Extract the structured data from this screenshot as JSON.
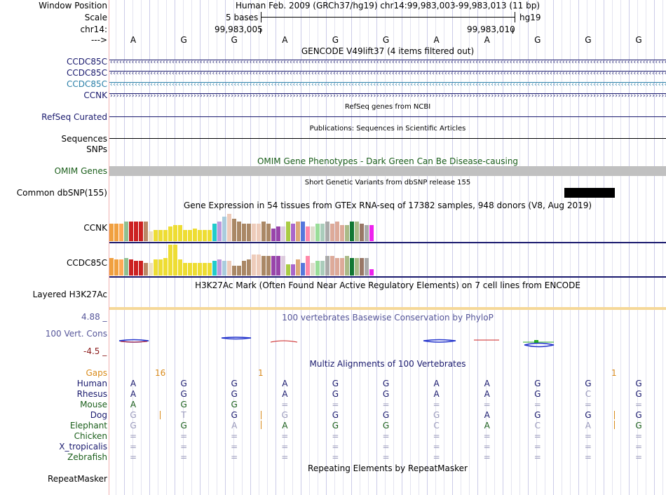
{
  "colors": {
    "navy": "#1a1a6e",
    "teal": "#2a7fa8",
    "green": "#1a5e1a",
    "orange": "#d98a1a",
    "omim_bar": "#c0c0c0",
    "h3k27ac": "#f5d898",
    "gtex_line": "#1a1a6e",
    "phylop_pos": "#555599",
    "phylop_neg": "#8b1a1a"
  },
  "header": {
    "window_label": "Window Position",
    "window_text": "Human Feb. 2009 (GRCh37/hg19)   chr14:99,983,003-99,983,013 (11 bp)",
    "scale_label": "Scale",
    "scale_text": "5 bases",
    "scale_assembly": "hg19",
    "chr_label": "chr14:",
    "pos_left": "99,983,005",
    "pos_right": "99,983,010",
    "strand_label": "--->",
    "bases": [
      "A",
      "G",
      "G",
      "A",
      "G",
      "G",
      "A",
      "A",
      "G",
      "G",
      "G"
    ]
  },
  "gencode": {
    "title": "GENCODE V49lift37 (4 items filtered out)",
    "tracks": [
      {
        "label": "CCDC85C",
        "color": "#1a1a6e",
        "dir": "‹"
      },
      {
        "label": "CCDC85C",
        "color": "#1a1a6e",
        "dir": "‹"
      },
      {
        "label": "CCDC85C",
        "color": "#2a7fa8",
        "dir": "‹"
      },
      {
        "label": "CCNK",
        "color": "#1a1a6e",
        "dir": "›"
      }
    ]
  },
  "refseq": {
    "label": "RefSeq Curated",
    "title": "RefSeq genes from NCBI"
  },
  "publications": {
    "label": "Sequences",
    "title": "Publications: Sequences in Scientific Articles"
  },
  "snps_label": "SNPs",
  "omim": {
    "label": "OMIM Genes",
    "title": "OMIM Gene Phenotypes - Dark Green Can Be Disease-causing"
  },
  "dbsnp": {
    "label": "Common dbSNP(155)",
    "title": "Short Genetic Variants from dbSNP release 155"
  },
  "gtex": {
    "title": "Gene Expression in 54 tissues from GTEx RNA-seq of 17382 samples, 948 donors (V8, Aug 2019)",
    "tracks": [
      {
        "label": "CCNK",
        "values": [
          0.55,
          0.55,
          0.55,
          0.6,
          0.6,
          0.6,
          0.6,
          0.6,
          0.3,
          0.35,
          0.35,
          0.35,
          0.45,
          0.5,
          0.5,
          0.35,
          0.35,
          0.4,
          0.35,
          0.35,
          0.35,
          0.55,
          0.6,
          0.75,
          0.85,
          0.7,
          0.6,
          0.55,
          0.55,
          0.55,
          0.55,
          0.6,
          0.55,
          0.4,
          0.45,
          0.45,
          0.6,
          0.55,
          0.6,
          0.6,
          0.45,
          0.45,
          0.55,
          0.55,
          0.6,
          0.55,
          0.6,
          0.5,
          0.5,
          0.6,
          0.6,
          0.55,
          0.5,
          0.5
        ]
      },
      {
        "label": "CCDC85C",
        "values": [
          0.55,
          0.5,
          0.5,
          0.55,
          0.5,
          0.45,
          0.45,
          0.4,
          0.4,
          0.5,
          0.5,
          0.55,
          0.95,
          0.95,
          0.5,
          0.4,
          0.4,
          0.4,
          0.4,
          0.4,
          0.4,
          0.45,
          0.5,
          0.45,
          0.45,
          0.3,
          0.3,
          0.45,
          0.5,
          0.65,
          0.65,
          0.6,
          0.6,
          0.6,
          0.6,
          0.6,
          0.35,
          0.35,
          0.5,
          0.4,
          0.6,
          0.4,
          0.45,
          0.45,
          0.6,
          0.6,
          0.55,
          0.55,
          0.6,
          0.55,
          0.55,
          0.55,
          0.55,
          0.2
        ]
      }
    ],
    "colors": [
      "#f0a040",
      "#f0a040",
      "#ffaa55",
      "#90c090",
      "#cc2222",
      "#cc2222",
      "#cc2222",
      "#bb8866",
      "#eee0c0",
      "#eedd33",
      "#eedd33",
      "#eedd33",
      "#eedd33",
      "#eedd33",
      "#eedd33",
      "#eedd33",
      "#eedd33",
      "#eedd33",
      "#eedd33",
      "#eedd33",
      "#eedd33",
      "#22cccc",
      "#bb99dd",
      "#aaccdd",
      "#eeccbb",
      "#aa8866",
      "#aa8866",
      "#aa8866",
      "#aa8866",
      "#eeccbb",
      "#eeccbb",
      "#aa8866",
      "#aa8866",
      "#9944aa",
      "#9944aa",
      "#ddccdd",
      "#aacc44",
      "#aa66cc",
      "#ddaa77",
      "#5577dd",
      "#ff88aa",
      "#ddddcc",
      "#99dd99",
      "#aaccbb",
      "#aaaaaa",
      "#ddaa99",
      "#ddaa99",
      "#ddaa99",
      "#aabb88",
      "#117733",
      "#aabb88",
      "#997766",
      "#aaaaaa",
      "#ee22ee"
    ]
  },
  "h3k27ac": {
    "label": "Layered H3K27Ac",
    "title": "H3K27Ac Mark (Often Found Near Active Regulatory Elements) on 7 cell lines from ENCODE"
  },
  "phylop": {
    "label": "100 Vert. Cons",
    "max": "4.88 _",
    "min": "-4.5 _",
    "title": "100 vertebrates Basewise Conservation by PhyloP"
  },
  "multiz": {
    "title": "Multiz Alignments of 100 Vertebrates",
    "gaps_label": "Gaps",
    "gap_16": "16",
    "gap_1a": "1",
    "gap_1b": "1",
    "species": [
      {
        "name": "Human",
        "color": "#1a1a6e",
        "seq": [
          "A",
          "G",
          "G",
          "A",
          "G",
          "G",
          "A",
          "A",
          "G",
          "G",
          "G"
        ],
        "dim": [
          0,
          0,
          0,
          0,
          0,
          0,
          0,
          0,
          0,
          0,
          0
        ]
      },
      {
        "name": "Rhesus",
        "color": "#1a1a6e",
        "seq": [
          "A",
          "G",
          "G",
          "A",
          "G",
          "G",
          "A",
          "A",
          "G",
          "C",
          "G"
        ],
        "dim": [
          0,
          0,
          0,
          0,
          0,
          0,
          0,
          0,
          0,
          1,
          0
        ]
      },
      {
        "name": "Mouse",
        "color": "#1a5e1a",
        "seq": [
          "A",
          "G",
          "G",
          "=",
          "=",
          "=",
          "=",
          "=",
          "=",
          "=",
          "="
        ],
        "dim": [
          0,
          0,
          0,
          1,
          1,
          1,
          1,
          1,
          1,
          1,
          1
        ]
      },
      {
        "name": "Dog",
        "color": "#1a1a6e",
        "seq": [
          "G",
          "T",
          "G",
          "G",
          "G",
          "G",
          "G",
          "A",
          "G",
          "G",
          "G"
        ],
        "dim": [
          1,
          1,
          0,
          1,
          0,
          0,
          1,
          0,
          0,
          0,
          0
        ]
      },
      {
        "name": "Elephant",
        "color": "#1a5e1a",
        "seq": [
          "G",
          "G",
          "A",
          "A",
          "G",
          "G",
          "C",
          "A",
          "C",
          "A",
          "G"
        ],
        "dim": [
          1,
          0,
          1,
          0,
          0,
          0,
          1,
          0,
          1,
          1,
          0
        ]
      },
      {
        "name": "Chicken",
        "color": "#1a5e1a",
        "seq": [
          "=",
          "=",
          "=",
          "=",
          "=",
          "=",
          "=",
          "=",
          "=",
          "=",
          "="
        ],
        "dim": [
          1,
          1,
          1,
          1,
          1,
          1,
          1,
          1,
          1,
          1,
          1
        ]
      },
      {
        "name": "X_tropicalis",
        "color": "#1a1a6e",
        "seq": [
          "=",
          "=",
          "=",
          "=",
          "=",
          "=",
          "=",
          "=",
          "=",
          "=",
          "="
        ],
        "dim": [
          1,
          1,
          1,
          1,
          1,
          1,
          1,
          1,
          1,
          1,
          1
        ]
      },
      {
        "name": "Zebrafish",
        "color": "#1a5e1a",
        "seq": [
          "=",
          "=",
          "=",
          "=",
          "=",
          "=",
          "=",
          "=",
          "=",
          "=",
          "="
        ],
        "dim": [
          1,
          1,
          1,
          1,
          1,
          1,
          1,
          1,
          1,
          1,
          1
        ]
      }
    ]
  },
  "repeatmasker": {
    "label": "RepeatMasker",
    "title": "Repeating Elements by RepeatMasker"
  }
}
